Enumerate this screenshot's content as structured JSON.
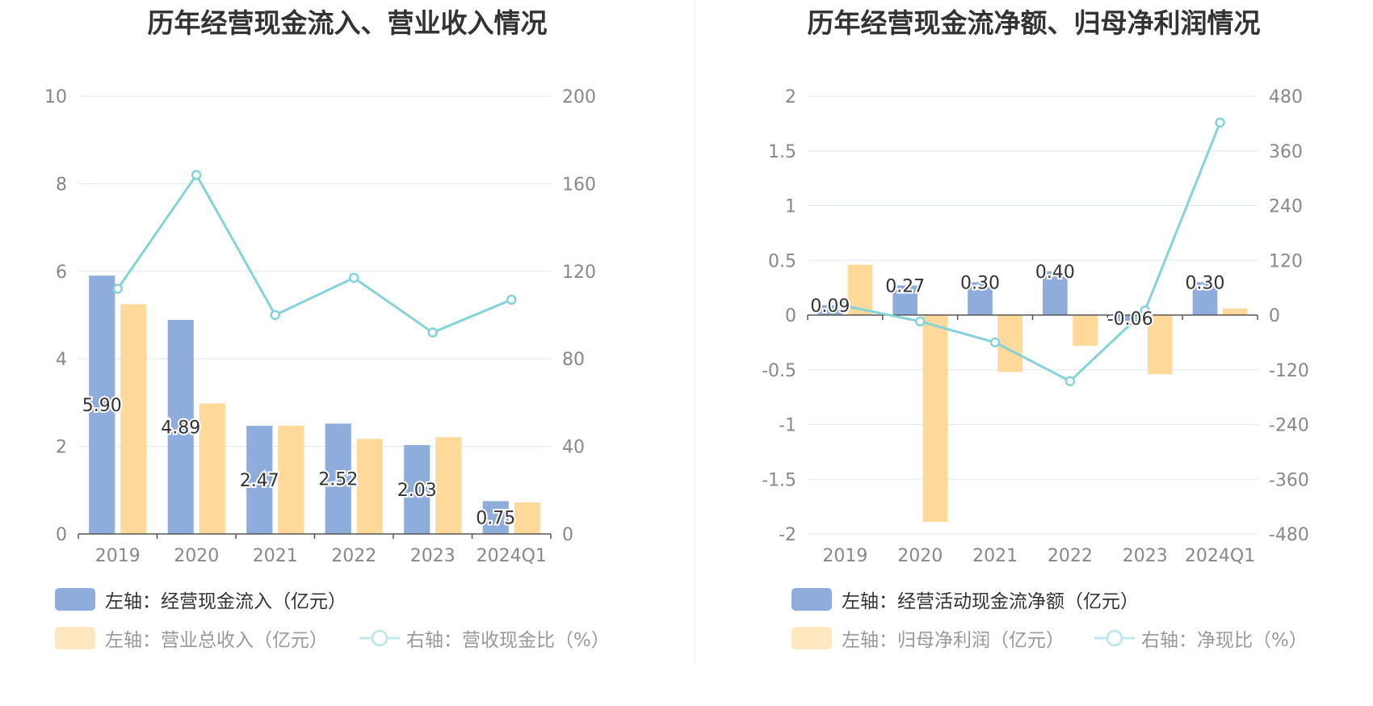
{
  "charts": {
    "left": {
      "title": "历年经营现金流入、营业收入情况",
      "legend": {
        "bar1": "左轴：经营现金流入（亿元）",
        "bar2": "左轴：营业总收入（亿元）",
        "line": "右轴：营收现金比（%）"
      }
    },
    "right": {
      "title": "历年经营现金流净额、归母净利润情况",
      "legend": {
        "bar1": "左轴：经营活动现金流净额（亿元）",
        "bar2": "左轴：归母净利润（亿元）",
        "line": "右轴：净现比（%）"
      }
    }
  },
  "colors": {
    "bar1": "#8eaddc",
    "bar2": "#ffd99a",
    "line": "#84d3d8",
    "grid": "#e0e6f1",
    "axis": "#555555"
  },
  "chart_data": [
    {
      "type": "bar",
      "title": "历年经营现金流入、营业收入情况",
      "categories": [
        "2019",
        "2020",
        "2021",
        "2022",
        "2023",
        "2024Q1"
      ],
      "left_axis": {
        "ylim": [
          0,
          10
        ],
        "ticks": [
          "0",
          "2",
          "4",
          "6",
          "8",
          "10"
        ]
      },
      "right_axis": {
        "ylim": [
          0,
          200
        ],
        "ticks": [
          "0",
          "40",
          "80",
          "120",
          "160",
          "200"
        ]
      },
      "series": [
        {
          "name": "左轴：经营现金流入（亿元）",
          "axis": "left",
          "type": "bar",
          "values": [
            5.9,
            4.89,
            2.47,
            2.52,
            2.03,
            0.75
          ],
          "labels": [
            "5.90",
            "4.89",
            "2.47",
            "2.52",
            "2.03",
            "0.75"
          ]
        },
        {
          "name": "左轴：营业总收入（亿元）",
          "axis": "left",
          "type": "bar",
          "values": [
            5.25,
            2.98,
            2.47,
            2.17,
            2.21,
            0.72
          ]
        },
        {
          "name": "右轴：营收现金比（%）",
          "axis": "right",
          "type": "line",
          "values": [
            112,
            164,
            100,
            117,
            92,
            107
          ]
        }
      ],
      "grid": true,
      "legend_position": "bottom-left"
    },
    {
      "type": "bar",
      "title": "历年经营现金流净额、归母净利润情况",
      "categories": [
        "2019",
        "2020",
        "2021",
        "2022",
        "2023",
        "2024Q1"
      ],
      "left_axis": {
        "ylim": [
          -2,
          2
        ],
        "ticks": [
          "-2",
          "-1.5",
          "-1",
          "-0.5",
          "0",
          "0.5",
          "1",
          "1.5",
          "2"
        ]
      },
      "right_axis": {
        "ylim": [
          -480,
          480
        ],
        "ticks": [
          "-480",
          "-360",
          "-240",
          "-120",
          "0",
          "120",
          "240",
          "360",
          "480"
        ]
      },
      "series": [
        {
          "name": "左轴：经营活动现金流净额（亿元）",
          "axis": "left",
          "type": "bar",
          "values": [
            0.09,
            0.27,
            0.3,
            0.4,
            -0.06,
            0.3
          ],
          "labels": [
            "0.09",
            "0.27",
            "0.30",
            "0.40",
            "-0.06",
            "0.30"
          ]
        },
        {
          "name": "左轴：归母净利润（亿元）",
          "axis": "left",
          "type": "bar",
          "values": [
            0.46,
            -1.89,
            -0.52,
            -0.28,
            -0.54,
            0.06
          ]
        },
        {
          "name": "右轴：净现比（%）",
          "axis": "right",
          "type": "line",
          "values": [
            20,
            -14,
            -60,
            -145,
            10,
            422
          ]
        }
      ],
      "grid": true,
      "legend_position": "bottom-left"
    }
  ]
}
